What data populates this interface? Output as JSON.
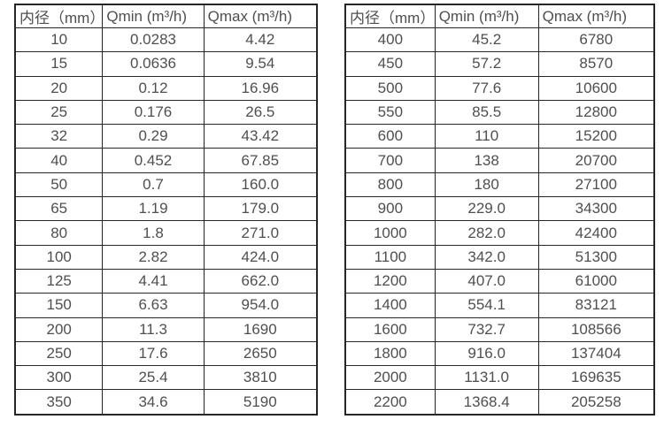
{
  "colors": {
    "background": "#ffffff",
    "table_border": "#262626",
    "text": "#4f4f4f"
  },
  "left_table": {
    "headers": [
      "内径（mm）",
      "Qmin (m³/h)",
      "Qmax (m³/h)"
    ],
    "rows": [
      [
        "10",
        "0.0283",
        "4.42"
      ],
      [
        "15",
        "0.0636",
        "9.54"
      ],
      [
        "20",
        "0.12",
        "16.96"
      ],
      [
        "25",
        "0.176",
        "26.5"
      ],
      [
        "32",
        "0.29",
        "43.42"
      ],
      [
        "40",
        "0.452",
        "67.85"
      ],
      [
        "50",
        "0.7",
        "160.0"
      ],
      [
        "65",
        "1.19",
        "179.0"
      ],
      [
        "80",
        "1.8",
        "271.0"
      ],
      [
        "100",
        "2.82",
        "424.0"
      ],
      [
        "125",
        "4.41",
        "662.0"
      ],
      [
        "150",
        "6.63",
        "954.0"
      ],
      [
        "200",
        "11.3",
        "1690"
      ],
      [
        "250",
        "17.6",
        "2650"
      ],
      [
        "300",
        "25.4",
        "3810"
      ],
      [
        "350",
        "34.6",
        "5190"
      ]
    ]
  },
  "right_table": {
    "headers": [
      "内径（mm）",
      "Qmin (m³/h)",
      "Qmax (m³/h)"
    ],
    "rows": [
      [
        "400",
        "45.2",
        "6780"
      ],
      [
        "450",
        "57.2",
        "8570"
      ],
      [
        "500",
        "77.6",
        "10600"
      ],
      [
        "550",
        "85.5",
        "12800"
      ],
      [
        "600",
        "110",
        "15200"
      ],
      [
        "700",
        "138",
        "20700"
      ],
      [
        "800",
        "180",
        "27100"
      ],
      [
        "900",
        "229.0",
        "34300"
      ],
      [
        "1000",
        "282.0",
        "42400"
      ],
      [
        "1100",
        "342.0",
        "51300"
      ],
      [
        "1200",
        "407.0",
        "61000"
      ],
      [
        "1400",
        "554.1",
        "83121"
      ],
      [
        "1600",
        "732.7",
        "108566"
      ],
      [
        "1800",
        "916.0",
        "137404"
      ],
      [
        "2000",
        "1131.0",
        "169635"
      ],
      [
        "2200",
        "1368.4",
        "205258"
      ]
    ]
  }
}
